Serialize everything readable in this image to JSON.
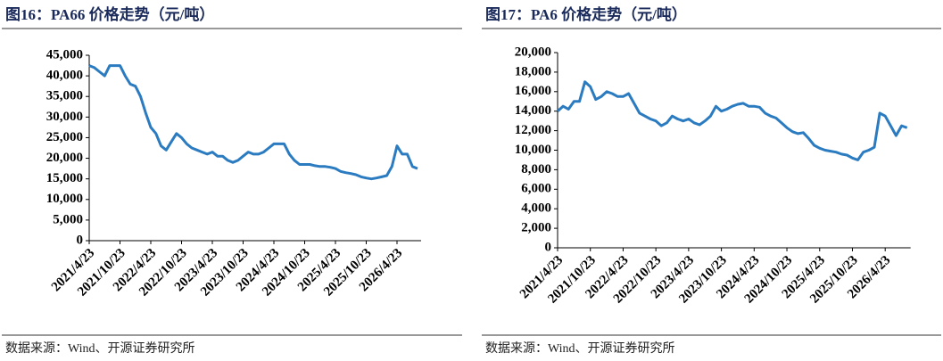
{
  "chart_data": [
    {
      "type": "line",
      "title": "图16：PA66 价格走势（元/吨）",
      "source": "数据来源：Wind、开源证券研究所",
      "categories": [
        "2021/4/23",
        null,
        null,
        null,
        null,
        null,
        "2021/10/23",
        null,
        null,
        null,
        null,
        null,
        "2022/4/23",
        null,
        null,
        null,
        null,
        null,
        "2022/10/23",
        null,
        null,
        null,
        null,
        null,
        "2023/4/23",
        null,
        null,
        null,
        null,
        null,
        "2023/10/23",
        null,
        null,
        null,
        null,
        null,
        "2024/4/23",
        null,
        null,
        null,
        null,
        null,
        "2024/10/23",
        null,
        null,
        null,
        null,
        null,
        "2025/4/23",
        null,
        null,
        null,
        null,
        null,
        "2025/10/23",
        null,
        null,
        null,
        null,
        null,
        "2026/4/23",
        null,
        null,
        null,
        null
      ],
      "series": [
        {
          "color": "#2b7bc1",
          "values": [
            42500,
            42000,
            41000,
            40000,
            42500,
            42500,
            42500,
            40000,
            38000,
            37500,
            35000,
            31000,
            27500,
            26000,
            23000,
            22000,
            24000,
            26000,
            25000,
            23500,
            22500,
            22000,
            21500,
            21000,
            21500,
            20500,
            20500,
            19500,
            19000,
            19500,
            20500,
            21500,
            21000,
            21000,
            21500,
            22500,
            23500,
            23500,
            23500,
            21000,
            19500,
            18500,
            18500,
            18500,
            18200,
            18000,
            18000,
            17800,
            17500,
            16800,
            16500,
            16300,
            16000,
            15500,
            15200,
            15000,
            15200,
            15500,
            15800,
            18000,
            23000,
            21000,
            21000,
            18000,
            17500
          ]
        }
      ],
      "ylim": [
        0,
        45000
      ],
      "yticks": [
        0,
        {
          "value": 5000,
          "label": "5,000"
        },
        {
          "value": 10000,
          "label": "10,000"
        },
        {
          "value": 15000,
          "label": "15,000"
        },
        {
          "value": 20000,
          "label": "20,000"
        },
        {
          "value": 25000,
          "label": "25,000"
        },
        {
          "value": 30000,
          "label": "30,000"
        },
        {
          "value": 35000,
          "label": "35,000"
        },
        {
          "value": 40000,
          "label": "40,000"
        },
        {
          "value": 45000,
          "label": "45,000"
        }
      ]
    },
    {
      "type": "line",
      "title": "图17：PA6 价格走势（元/吨）",
      "source": "数据来源：Wind、开源证券研究所",
      "categories": [
        "2021/4/23",
        null,
        null,
        null,
        null,
        null,
        "2021/10/23",
        null,
        null,
        null,
        null,
        null,
        "2022/4/23",
        null,
        null,
        null,
        null,
        null,
        "2022/10/23",
        null,
        null,
        null,
        null,
        null,
        "2023/4/23",
        null,
        null,
        null,
        null,
        null,
        "2023/10/23",
        null,
        null,
        null,
        null,
        null,
        "2024/4/23",
        null,
        null,
        null,
        null,
        null,
        "2024/10/23",
        null,
        null,
        null,
        null,
        null,
        "2025/4/23",
        null,
        null,
        null,
        null,
        null,
        "2025/10/23",
        null,
        null,
        null,
        null,
        null,
        "2026/4/23",
        null,
        null,
        null,
        null
      ],
      "series": [
        {
          "color": "#2b7bc1",
          "values": [
            14000,
            14500,
            14200,
            15000,
            15000,
            17000,
            16500,
            15200,
            15500,
            16000,
            15800,
            15500,
            15500,
            15800,
            14800,
            13800,
            13500,
            13200,
            13000,
            12500,
            12800,
            13500,
            13200,
            13000,
            13200,
            12800,
            12600,
            13000,
            13500,
            14500,
            14000,
            14200,
            14500,
            14700,
            14800,
            14500,
            14500,
            14400,
            13800,
            13500,
            13300,
            12800,
            12300,
            11900,
            11700,
            11800,
            11200,
            10500,
            10200,
            10000,
            9900,
            9800,
            9600,
            9500,
            9200,
            9000,
            9800,
            10000,
            10300,
            13800,
            13500,
            12500,
            11500,
            12500,
            12300
          ]
        }
      ],
      "ylim": [
        0,
        20000
      ],
      "yticks": [
        0,
        {
          "value": 2000,
          "label": "2,000"
        },
        {
          "value": 4000,
          "label": "4,000"
        },
        {
          "value": 6000,
          "label": "6,000"
        },
        {
          "value": 8000,
          "label": "8,000"
        },
        {
          "value": 10000,
          "label": "10,000"
        },
        {
          "value": 12000,
          "label": "12,000"
        },
        {
          "value": 14000,
          "label": "14,000"
        },
        {
          "value": 16000,
          "label": "16,000"
        },
        {
          "value": 18000,
          "label": "18,000"
        },
        {
          "value": 20000,
          "label": "20,000"
        }
      ]
    }
  ]
}
